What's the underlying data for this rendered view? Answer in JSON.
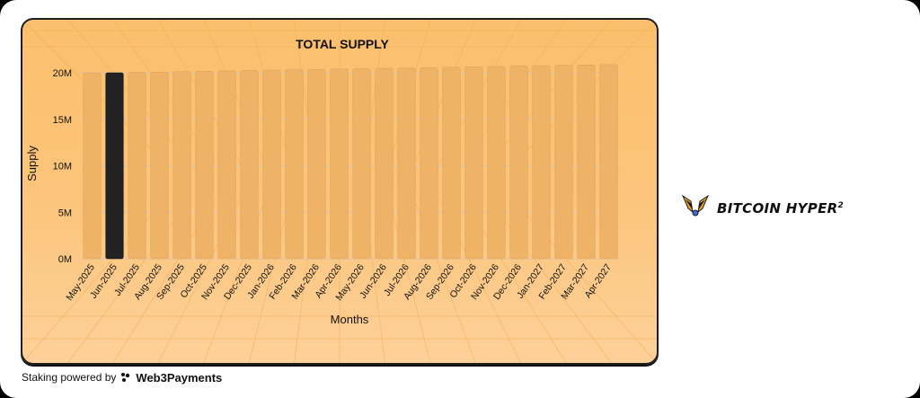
{
  "chart_data": {
    "type": "bar",
    "title": "TOTAL SUPPLY",
    "xlabel": "Months",
    "ylabel": "Supply",
    "ylim": [
      0,
      20000000
    ],
    "yticks": [
      "0M",
      "5M",
      "10M",
      "15M",
      "20M"
    ],
    "yticks_values": [
      0,
      5000000,
      10000000,
      15000000,
      20000000
    ],
    "categories": [
      "May-2025",
      "Jun-2025",
      "Jul-2025",
      "Aug-2025",
      "Sep-2025",
      "Oct-2025",
      "Nov-2025",
      "Dec-2025",
      "Jan-2026",
      "Feb-2026",
      "Mar-2026",
      "Apr-2026",
      "May-2026",
      "Jun-2026",
      "Jul-2026",
      "Aug-2026",
      "Sep-2026",
      "Oct-2026",
      "Nov-2026",
      "Dec-2026",
      "Jan-2027",
      "Feb-2027",
      "Mar-2027",
      "Apr-2027"
    ],
    "values": [
      20000000,
      20000000,
      20040000,
      20080000,
      20120000,
      20160000,
      20200000,
      20240000,
      20280000,
      20320000,
      20360000,
      20400000,
      20440000,
      20480000,
      20520000,
      20560000,
      20600000,
      20640000,
      20680000,
      20720000,
      20760000,
      20800000,
      20840000,
      20880000
    ],
    "highlighted_category": "Jun-2025",
    "grid": true,
    "colors": {
      "bar": "#efb368",
      "highlight": "#222222",
      "background": "#fcc57c"
    }
  },
  "footer": {
    "prefix": "Staking powered by",
    "brand": "Web3Payments",
    "brand_icon": "web3payments-logo-icon"
  },
  "logo": {
    "text": "BITCOIN HYPER",
    "superscript": "2",
    "icon": "hyper-wings-logo-icon",
    "colors": {
      "primary": "#f0a030",
      "dark": "#1a1a1a"
    }
  }
}
